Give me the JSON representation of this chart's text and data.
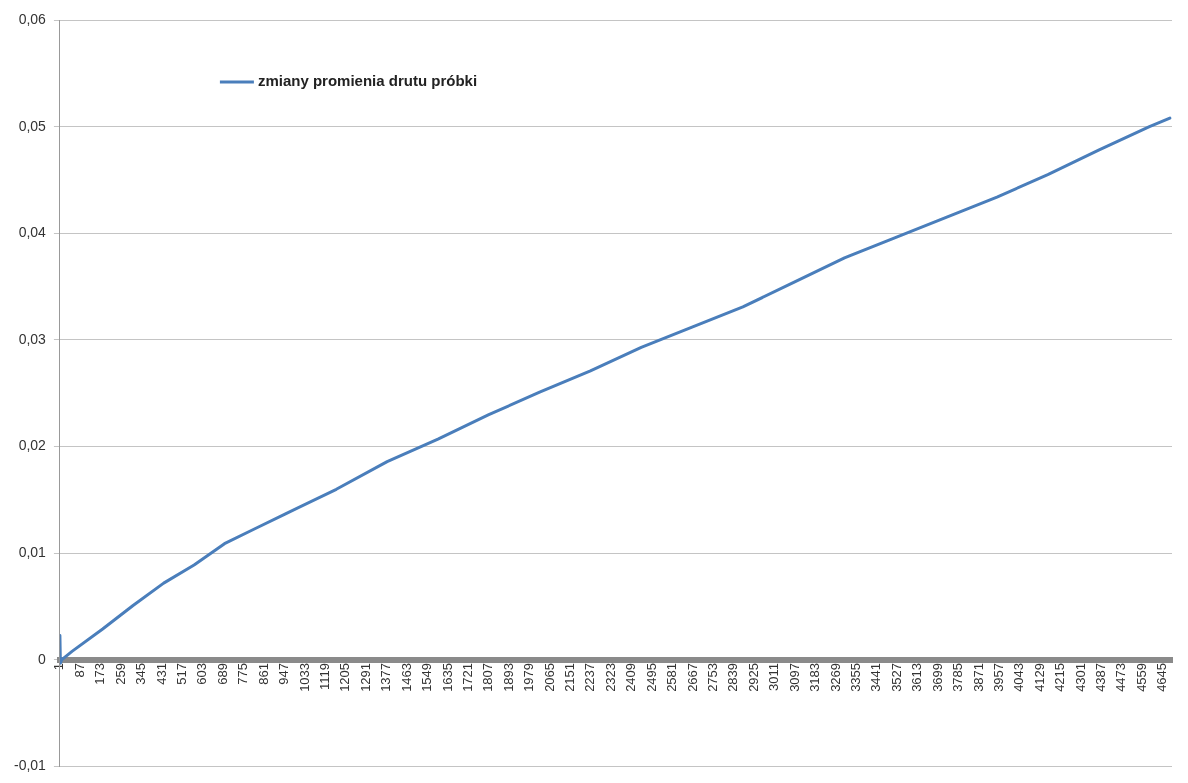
{
  "chart_data": {
    "type": "line",
    "legend": "top left",
    "grid": "y",
    "marker": "none",
    "line_style": "solid",
    "xlim": [
      1,
      4684
    ],
    "xticks": [
      1,
      87,
      173,
      259,
      345,
      431,
      517,
      603,
      689,
      775,
      861,
      947,
      1033,
      1119,
      1205,
      1291,
      1377,
      1463,
      1549,
      1635,
      1721,
      1807,
      1893,
      1979,
      2065,
      2151,
      2237,
      2323,
      2409,
      2495,
      2581,
      2667,
      2753,
      2839,
      2925,
      3011,
      3097,
      3183,
      3269,
      3355,
      3441,
      3527,
      3613,
      3699,
      3785,
      3871,
      3957,
      4043,
      4129,
      4215,
      4301,
      4387,
      4473,
      4559,
      4645
    ],
    "ylim": [
      -0.01,
      0.06
    ],
    "yticks": [
      {
        "value": -0.01,
        "label": "-0,01"
      },
      0,
      {
        "value": 0.01,
        "label": "0,01"
      },
      {
        "value": 0.02,
        "label": "0,02"
      },
      {
        "value": 0.03,
        "label": "0,03"
      },
      {
        "value": 0.04,
        "label": "0,04"
      },
      {
        "value": 0.05,
        "label": "0,05"
      },
      {
        "value": 0.06,
        "label": "0,06"
      }
    ],
    "series": [
      {
        "name": "zmiany promienia drutu próbki",
        "color": "#4a7ebb",
        "x": [
          1,
          3,
          8,
          52,
          181,
          309,
          438,
          566,
          694,
          822,
          951,
          1165,
          1379,
          1593,
          1807,
          2021,
          2235,
          2449,
          2663,
          2877,
          3091,
          3305,
          3519,
          3733,
          3947,
          4161,
          4375,
          4589,
          4675
        ],
        "values": [
          0.0023,
          -0.0003,
          0,
          0.0008,
          0.0029,
          0.0051,
          0.0072,
          0.0089,
          0.0109,
          0.0123,
          0.0137,
          0.016,
          0.0186,
          0.0207,
          0.023,
          0.0251,
          0.0271,
          0.0293,
          0.0312,
          0.0331,
          0.0354,
          0.0377,
          0.0396,
          0.0415,
          0.0434,
          0.0455,
          0.0478,
          0.05,
          0.0508
        ]
      }
    ]
  }
}
